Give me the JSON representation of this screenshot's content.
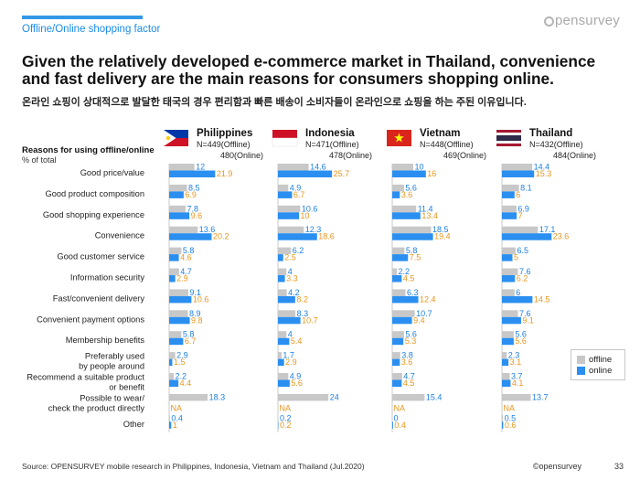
{
  "header": {
    "section_label": "Offline/Online shopping factor",
    "logo_text": "pensurvey",
    "title": "Given the relatively developed e-commerce market in Thailand, convenience and fast delivery are the main reasons for consumers shopping online.",
    "subtitle": "온라인 쇼핑이 상대적으로 발달한 태국의 경우 편리함과 빠른 배송이 소비자들이 온라인으로 쇼핑을 하는 주된 이유입니다."
  },
  "footer": {
    "source": "Source: OPENSURVEY mobile research in Philippines, Indonesia, Vietnam and Thailand (Jul.2020)",
    "copyright": "©opensurvey",
    "page": "33"
  },
  "colors": {
    "offline": "#c8c8c8",
    "online": "#2a8ff0",
    "label_offline": "#1c7fe0",
    "label_online": "#e8961e"
  },
  "chart_data": {
    "type": "bar",
    "orientation": "horizontal",
    "title": "Reasons for using offline/online",
    "ylabel": "% of total",
    "xlim": [
      0,
      30
    ],
    "categories": [
      "Good price/value",
      "Good product composition",
      "Good shopping experience",
      "Convenience",
      "Good customer service",
      "Information security",
      "Fast/convenient delivery",
      "Convenient payment options",
      "Membership benefits",
      "Preferably used\nby people around",
      "Recommend a suitable product\nor benefit",
      "Possible to wear/\ncheck the product directly",
      "Other"
    ],
    "legend": [
      "offline",
      "online"
    ],
    "panels": [
      {
        "country": "Philippines",
        "flag": "philippines-flag",
        "n_offline": "N=449(Offline)",
        "n_online": "480(Online)",
        "offline": [
          12,
          8.5,
          7.8,
          13.6,
          5.8,
          4.7,
          9.1,
          8.9,
          5.8,
          2.9,
          2.2,
          18.3,
          0.4
        ],
        "online": [
          21.9,
          6.9,
          9.6,
          20.2,
          4.6,
          2.9,
          10.6,
          9.8,
          6.7,
          1.5,
          4.4,
          null,
          1
        ]
      },
      {
        "country": "Indonesia",
        "flag": "indonesia-flag",
        "n_offline": "N=471(Offline)",
        "n_online": "478(Online)",
        "offline": [
          14.6,
          4.9,
          10.6,
          12.3,
          6.2,
          4,
          4.2,
          8.3,
          4,
          1.7,
          4.9,
          24,
          0.2
        ],
        "online": [
          25.7,
          6.7,
          10,
          18.6,
          2.5,
          3.3,
          8.2,
          10.7,
          5.4,
          2.9,
          5.6,
          null,
          0.2
        ]
      },
      {
        "country": "Vietnam",
        "flag": "vietnam-flag",
        "n_offline": "N=448(Offline)",
        "n_online": "469(Online)",
        "offline": [
          10,
          5.6,
          11.4,
          18.5,
          5.8,
          2.2,
          6.3,
          10.7,
          5.6,
          3.8,
          4.7,
          15.4,
          0
        ],
        "online": [
          16,
          3.6,
          13.4,
          19.4,
          7.5,
          4.5,
          12.4,
          9.4,
          5.3,
          3.6,
          4.5,
          null,
          0.4
        ]
      },
      {
        "country": "Thailand",
        "flag": "thailand-flag",
        "n_offline": "N=432(Offline)",
        "n_online": "484(Online)",
        "offline": [
          14.4,
          8.1,
          6.9,
          17.1,
          6.5,
          7.6,
          6,
          7.6,
          5.6,
          2.3,
          3.7,
          13.7,
          0.5
        ],
        "online": [
          15.3,
          6,
          7,
          23.6,
          5,
          6.2,
          14.5,
          9.1,
          5.6,
          3.1,
          4.1,
          null,
          0.6
        ]
      }
    ],
    "na_label": "NA"
  }
}
